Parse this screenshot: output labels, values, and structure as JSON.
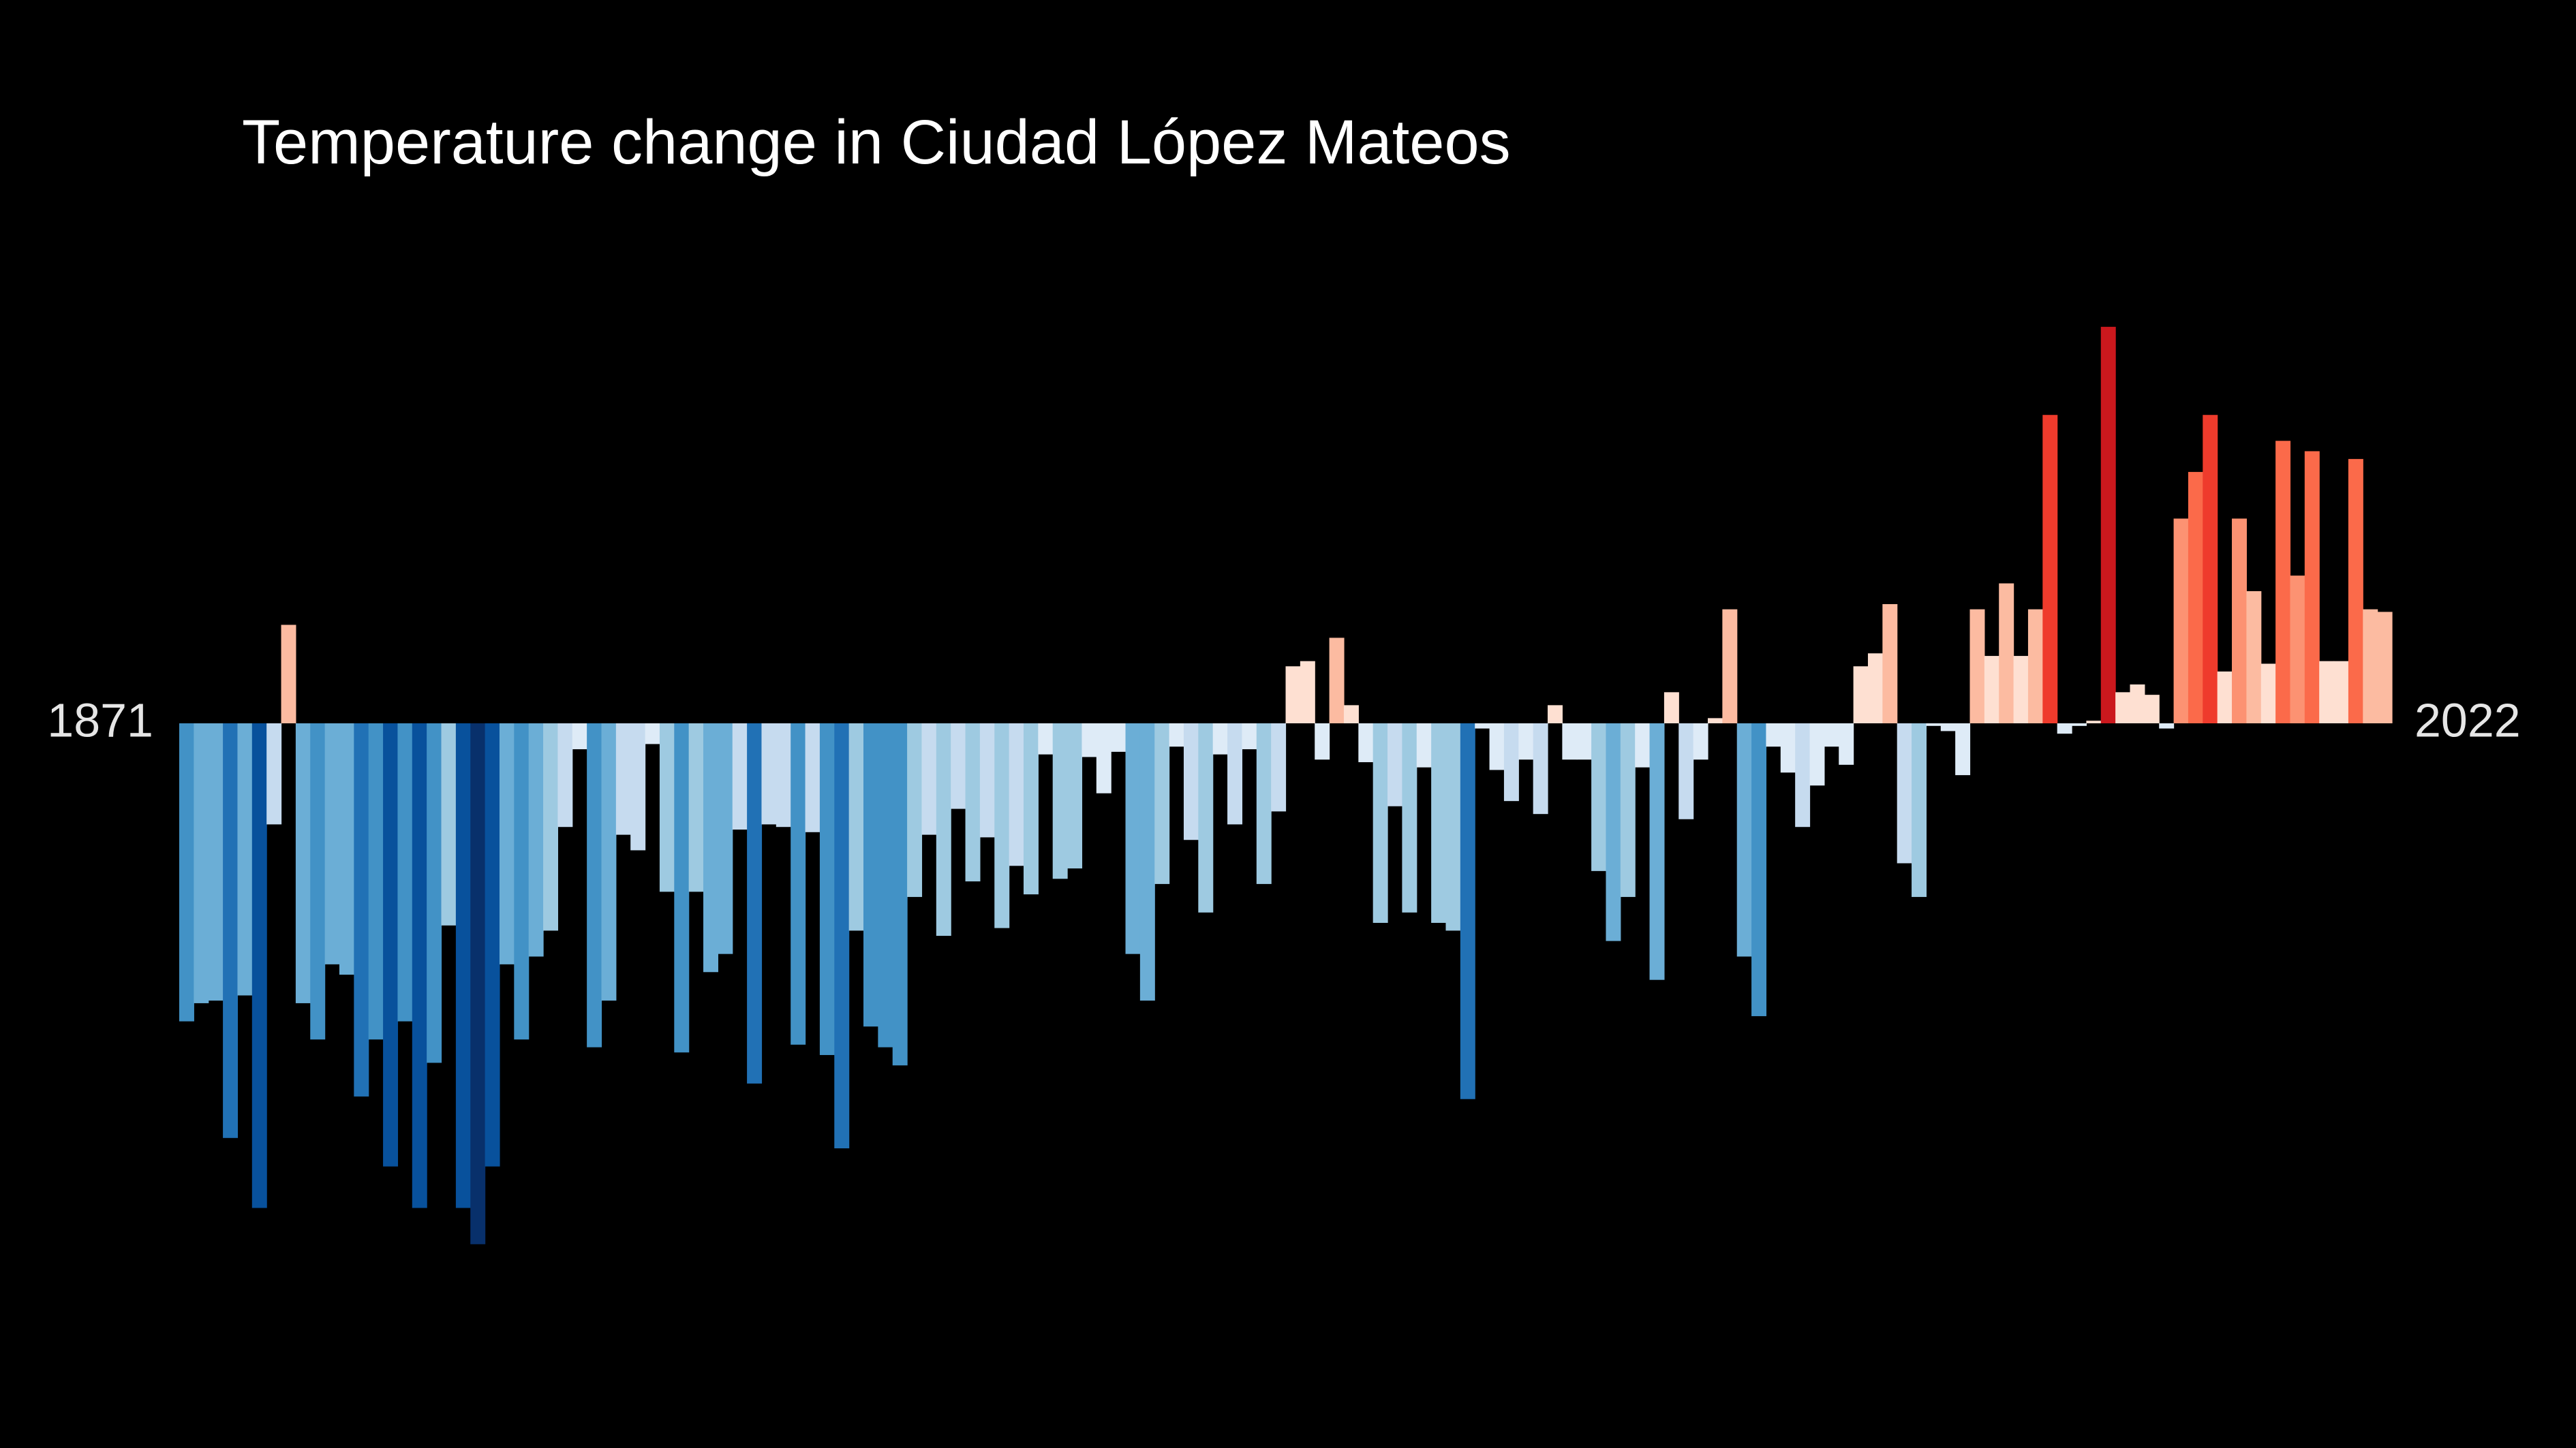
{
  "chart_data": {
    "type": "bar",
    "title": "Temperature change in Ciudad López Mateos",
    "start_year": "1871",
    "end_year": "2022",
    "ylim": [
      -1.1,
      1.1
    ],
    "values": [
      -0.575,
      -0.54,
      -0.535,
      -0.8,
      -0.525,
      -0.935,
      -0.195,
      0.19,
      -0.54,
      -0.61,
      -0.465,
      -0.485,
      -0.72,
      -0.61,
      -0.855,
      -0.575,
      -0.935,
      -0.655,
      -0.39,
      -0.935,
      -1.005,
      -0.855,
      -0.465,
      -0.61,
      -0.45,
      -0.4,
      -0.2,
      -0.05,
      -0.625,
      -0.535,
      -0.215,
      -0.245,
      -0.04,
      -0.325,
      -0.635,
      -0.325,
      -0.48,
      -0.445,
      -0.205,
      -0.695,
      -0.195,
      -0.2,
      -0.62,
      -0.21,
      -0.64,
      -0.82,
      -0.4,
      -0.585,
      -0.625,
      -0.66,
      -0.335,
      -0.215,
      -0.41,
      -0.165,
      -0.305,
      -0.22,
      -0.395,
      -0.275,
      -0.33,
      -0.06,
      -0.3,
      -0.28,
      -0.065,
      -0.135,
      -0.055,
      -0.445,
      -0.535,
      -0.31,
      -0.045,
      -0.225,
      -0.365,
      -0.06,
      -0.195,
      -0.05,
      -0.31,
      -0.17,
      0.11,
      0.12,
      -0.07,
      0.165,
      0.035,
      -0.075,
      -0.385,
      -0.16,
      -0.365,
      -0.085,
      -0.385,
      -0.4,
      -0.725,
      -0.01,
      -0.09,
      -0.15,
      -0.07,
      -0.175,
      0.035,
      -0.07,
      -0.07,
      -0.285,
      -0.42,
      -0.335,
      -0.085,
      -0.495,
      0.06,
      -0.185,
      -0.07,
      0.01,
      0.22,
      -0.45,
      -0.565,
      -0.045,
      -0.095,
      -0.2,
      -0.12,
      -0.045,
      -0.08,
      0.11,
      0.135,
      0.23,
      -0.27,
      -0.335,
      -0.005,
      -0.015,
      -0.1,
      0.22,
      0.13,
      0.27,
      0.13,
      0.22,
      0.595,
      -0.02,
      -0.005,
      0.005,
      0.765,
      0.06,
      0.075,
      0.055,
      -0.01,
      0.395,
      0.485,
      0.595,
      0.1,
      0.395,
      0.255,
      0.115,
      0.545,
      0.285,
      0.525,
      0.12,
      0.12,
      0.51,
      0.22,
      0.215
    ],
    "colors": {
      "background": "#000000",
      "title": "#ffffff",
      "year_labels": "#e6e6e6",
      "scale": [
        "#08306b",
        "#08519c",
        "#2171b5",
        "#4292c6",
        "#6baed6",
        "#9ecae1",
        "#c6dbef",
        "#deebf7",
        "#fee0d2",
        "#fcbba1",
        "#fc9272",
        "#fb6a4a",
        "#ef3b2c",
        "#cb181d",
        "#a50f15",
        "#67000d"
      ]
    }
  }
}
